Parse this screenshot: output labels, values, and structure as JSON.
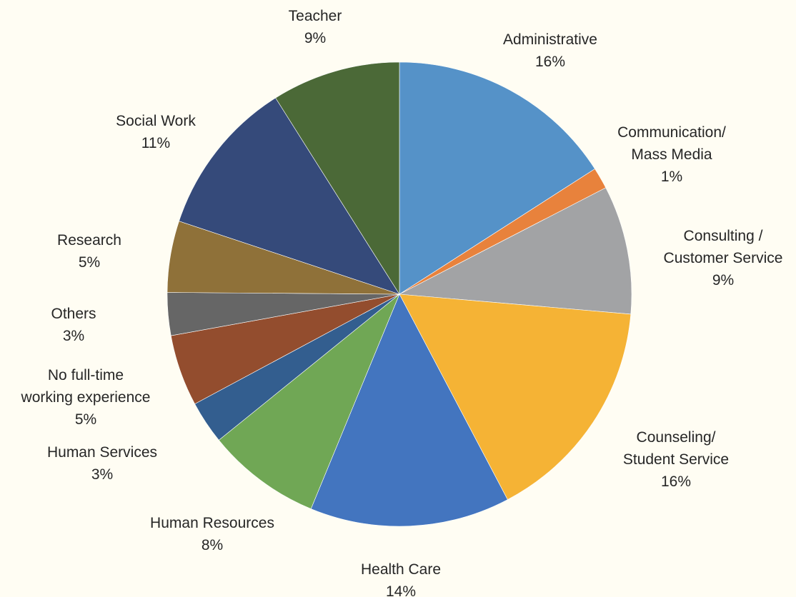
{
  "chart_data": {
    "type": "pie",
    "title": "",
    "slices": [
      {
        "label": [
          "Administrative"
        ],
        "value": 16,
        "pct_label": "16%",
        "color": "#5592c8"
      },
      {
        "label": [
          "Communication/",
          "Mass Media"
        ],
        "value": 1.5,
        "pct_label": "1%",
        "color": "#e8823c"
      },
      {
        "label": [
          "Consulting /",
          "Customer Service"
        ],
        "value": 9,
        "pct_label": "9%",
        "color": "#a2a3a5"
      },
      {
        "label": [
          "Counseling/",
          "Student Service"
        ],
        "value": 16,
        "pct_label": "16%",
        "color": "#f5b335"
      },
      {
        "label": [
          "Health Care"
        ],
        "value": 14,
        "pct_label": "14%",
        "color": "#4375bf"
      },
      {
        "label": [
          "Human Resources"
        ],
        "value": 8,
        "pct_label": "8%",
        "color": "#70a755"
      },
      {
        "label": [
          "Human Services"
        ],
        "value": 3,
        "pct_label": "3%",
        "color": "#335e8f"
      },
      {
        "label": [
          "No full-time",
          "working experience"
        ],
        "value": 5,
        "pct_label": "5%",
        "color": "#934d2e"
      },
      {
        "label": [
          "Others"
        ],
        "value": 3,
        "pct_label": "3%",
        "color": "#666666"
      },
      {
        "label": [
          "Research"
        ],
        "value": 5,
        "pct_label": "5%",
        "color": "#8f7139"
      },
      {
        "label": [
          "Social Work"
        ],
        "value": 11,
        "pct_label": "11%",
        "color": "#354a7a"
      },
      {
        "label": [
          "Teacher"
        ],
        "value": 9,
        "pct_label": "9%",
        "color": "#4b6937"
      }
    ],
    "start_angle_deg": 0,
    "direction": "clockwise",
    "legend": "none"
  }
}
